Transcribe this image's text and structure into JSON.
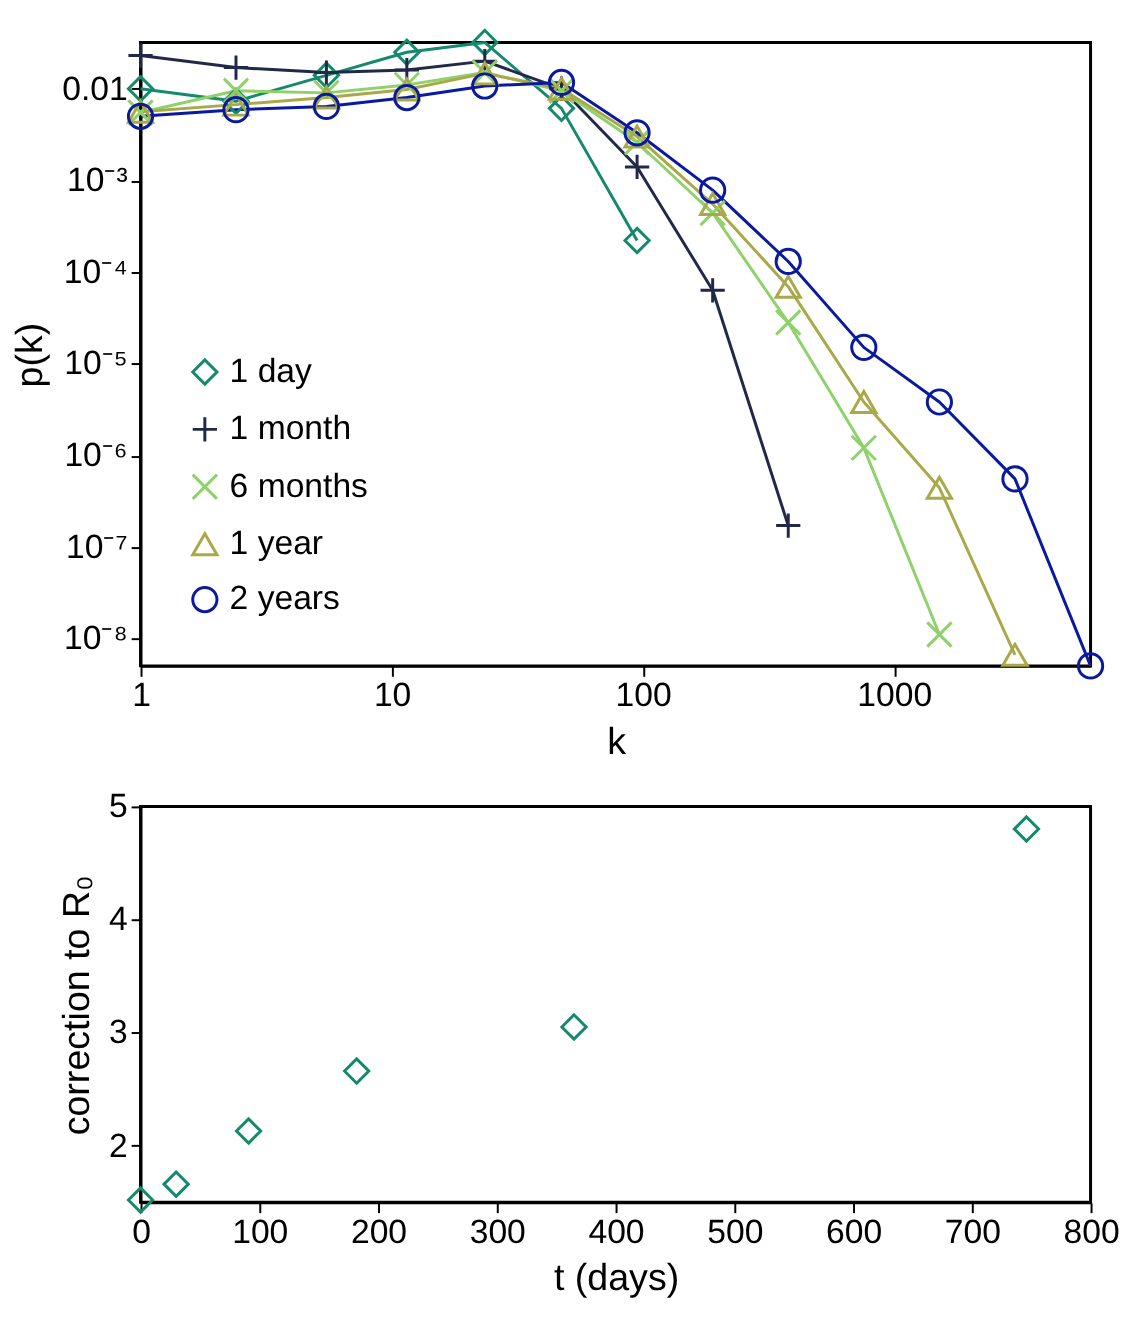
{
  "chart_data": [
    {
      "type": "line",
      "xlabel": "k",
      "ylabel": "p(k)",
      "log": "xy",
      "grid": false,
      "legend": "bottom left",
      "xlim": [
        1,
        6080
      ],
      "xticks": [
        1,
        10,
        100,
        1000
      ],
      "ylim": [
        5e-09,
        0.032
      ],
      "yticks": [
        {
          "value": 1e-08,
          "label": "10⁻⁸"
        },
        {
          "value": 1e-07,
          "label": "10⁻⁷"
        },
        {
          "value": 1e-06,
          "label": "10⁻⁶"
        },
        {
          "value": 1e-05,
          "label": "10⁻⁵"
        },
        {
          "value": 0.0001,
          "label": "10⁻⁴"
        },
        {
          "value": 0.001,
          "label": "10⁻³"
        },
        0.01
      ],
      "series": [
        {
          "name": "1 day",
          "color": "#138a6c",
          "marker": "diamond",
          "x": [
            1,
            2.4,
            5.5,
            11.5,
            23.5,
            47.5,
            95
          ],
          "values": [
            0.01,
            0.0073,
            0.014,
            0.025,
            0.032,
            0.0061,
            0.00022
          ]
        },
        {
          "name": "1 month",
          "color": "#22284a",
          "marker": "plus",
          "x": [
            1,
            2.4,
            5.5,
            11.5,
            23.5,
            47.5,
            95,
            190,
            380
          ],
          "values": [
            0.023,
            0.017,
            0.015,
            0.016,
            0.02,
            0.01,
            0.0014,
            6.3e-05,
            1.7e-07
          ]
        },
        {
          "name": "6 months",
          "color": "#8fd16a",
          "marker": "cross",
          "x": [
            1,
            2.4,
            5.5,
            11.5,
            23.5,
            47.5,
            95,
            190,
            380,
            760,
            1520
          ],
          "values": [
            0.0055,
            0.0095,
            0.009,
            0.011,
            0.015,
            0.0095,
            0.0026,
            0.00044,
            2.8e-05,
            1.2e-06,
            1.1e-08
          ]
        },
        {
          "name": "1 year",
          "color": "#a9a94a",
          "marker": "triangle",
          "x": [
            1,
            2.4,
            5.5,
            11.5,
            23.5,
            47.5,
            95,
            190,
            380,
            760,
            1520,
            3040
          ],
          "values": [
            0.0056,
            0.0067,
            0.008,
            0.0098,
            0.0147,
            0.01,
            0.003,
            0.00055,
            6.9e-05,
            3.8e-06,
            4.4e-07,
            6.6e-09
          ]
        },
        {
          "name": "2 years",
          "color": "#0a1aa0",
          "marker": "circle",
          "x": [
            1,
            2.4,
            5.5,
            11.5,
            23.5,
            47.5,
            95,
            190,
            380,
            760,
            1520,
            3040,
            6080
          ],
          "values": [
            0.005,
            0.0059,
            0.0064,
            0.008,
            0.0107,
            0.0117,
            0.0033,
            0.00078,
            0.00013,
            1.5e-05,
            3.8e-06,
            5.5e-07,
            5e-09
          ]
        }
      ]
    },
    {
      "type": "scatter",
      "xlabel": "t (days)",
      "ylabel": "correction to R₀",
      "grid": false,
      "marker": "diamond",
      "xlim": [
        0,
        800
      ],
      "xticks": [
        0,
        100,
        200,
        300,
        400,
        500,
        600,
        700,
        800
      ],
      "ylim": [
        1.5,
        5
      ],
      "yticks": [
        2,
        3,
        4,
        5
      ],
      "series": [
        {
          "color": "#138a6c",
          "x": [
            0,
            30,
            91,
            182,
            365,
            746
          ],
          "values": [
            1.52,
            1.66,
            2.13,
            2.66,
            3.05,
            4.8
          ]
        }
      ]
    }
  ]
}
